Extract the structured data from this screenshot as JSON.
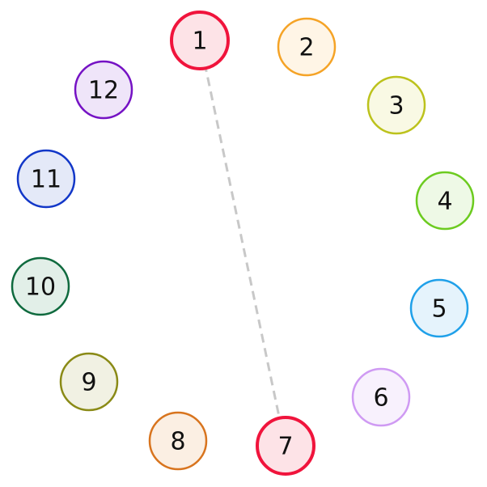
{
  "nodes": [
    {
      "label": "1",
      "stroke": "#f0143c",
      "fill": "#fde3e7",
      "selected": true
    },
    {
      "label": "2",
      "stroke": "#f5a326",
      "fill": "#fff5e6",
      "selected": false
    },
    {
      "label": "3",
      "stroke": "#bcc21c",
      "fill": "#f9f9e4",
      "selected": false
    },
    {
      "label": "4",
      "stroke": "#6ccb1f",
      "fill": "#eef9e6",
      "selected": false
    },
    {
      "label": "5",
      "stroke": "#1fa0e9",
      "fill": "#e5f3fc",
      "selected": false
    },
    {
      "label": "6",
      "stroke": "#cf9af3",
      "fill": "#f8f1fd",
      "selected": false
    },
    {
      "label": "7",
      "stroke": "#f0143c",
      "fill": "#fde3e7",
      "selected": true
    },
    {
      "label": "8",
      "stroke": "#d8741e",
      "fill": "#fbefe3",
      "selected": false
    },
    {
      "label": "9",
      "stroke": "#8a8a16",
      "fill": "#f1f1e3",
      "selected": false
    },
    {
      "label": "10",
      "stroke": "#0f6a3e",
      "fill": "#e2efe8",
      "selected": false
    },
    {
      "label": "11",
      "stroke": "#1237c8",
      "fill": "#e4e9f8",
      "selected": false
    },
    {
      "label": "12",
      "stroke": "#7512c4",
      "fill": "#efe5f9",
      "selected": false
    }
  ],
  "connections": [
    {
      "from": "1",
      "to": "7",
      "style": "dashed",
      "color": "#c8c8c8"
    }
  ]
}
